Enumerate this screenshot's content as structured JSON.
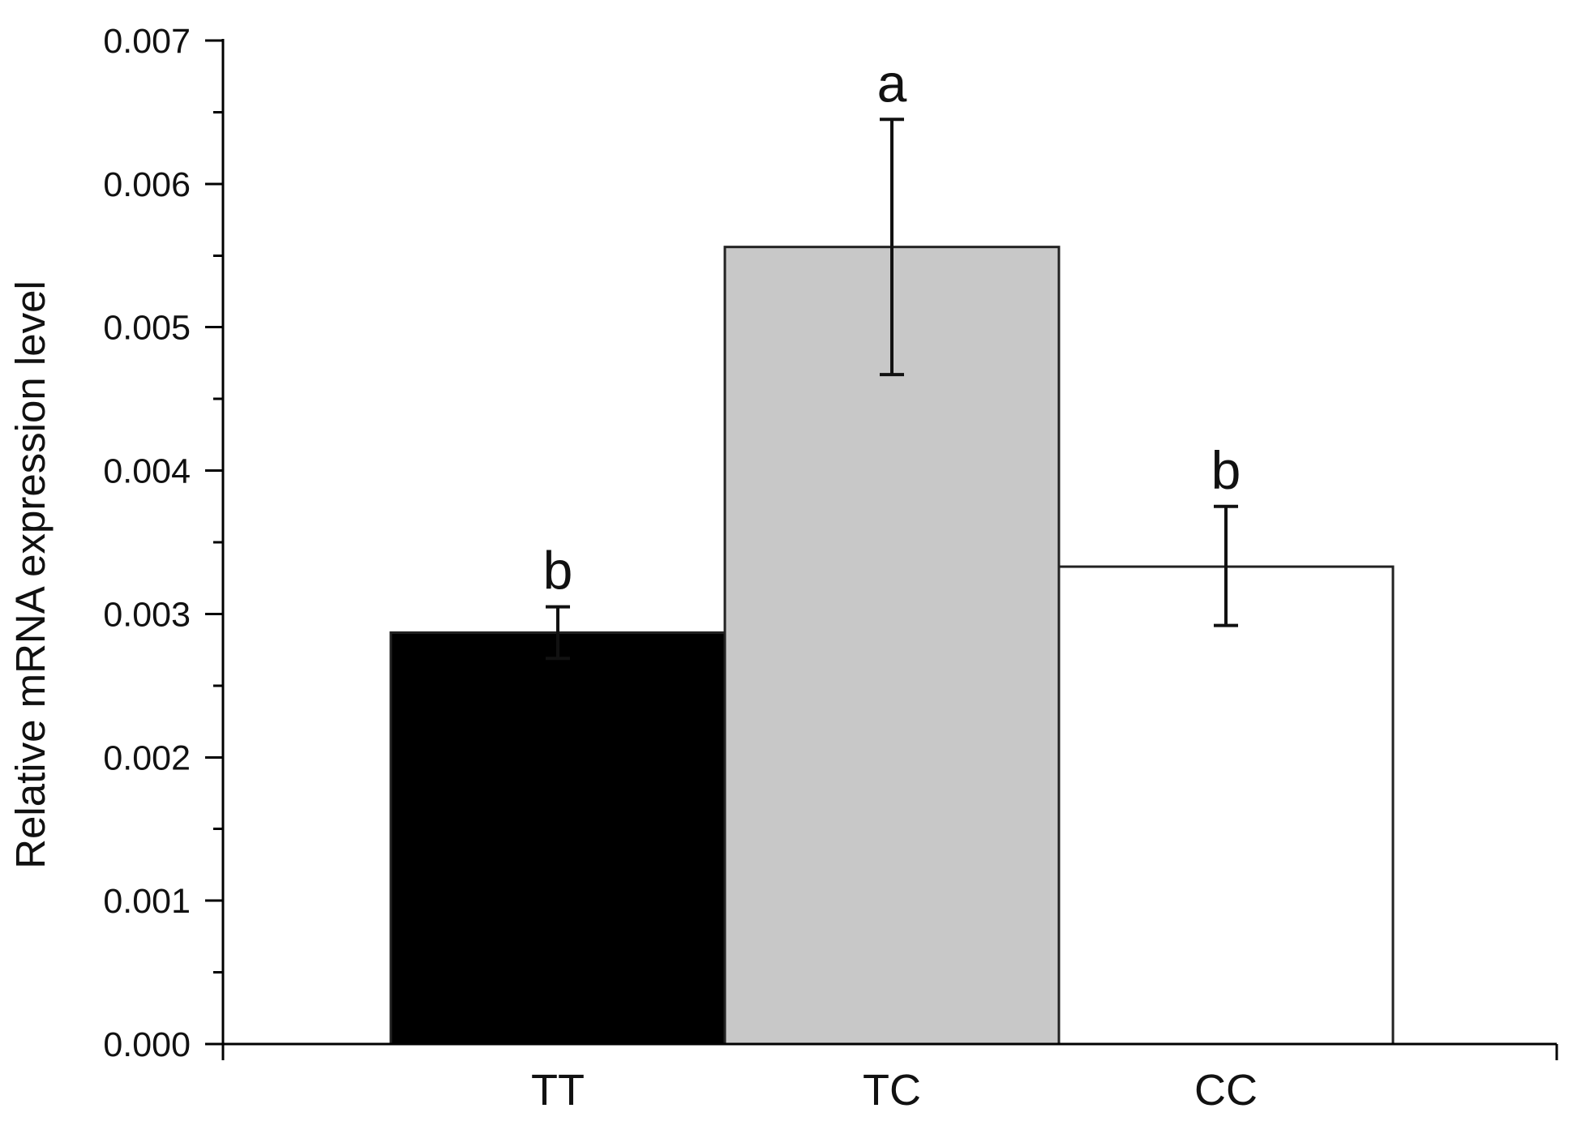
{
  "chart_data": {
    "type": "bar",
    "title": "",
    "xlabel": "",
    "ylabel": "Relative mRNA expression level",
    "categories": [
      "TT",
      "TC",
      "CC"
    ],
    "values": [
      0.00287,
      0.00556,
      0.00333
    ],
    "error_lower": [
      0.00269,
      0.00467,
      0.00292
    ],
    "error_upper": [
      0.00305,
      0.00645,
      0.00375
    ],
    "significance": [
      "b",
      "a",
      "b"
    ],
    "colors": [
      "#000000",
      "#c8c8c8",
      "#ffffff"
    ],
    "ylim": [
      0,
      0.007
    ],
    "yticks": [
      "0.000",
      "0.001",
      "0.002",
      "0.003",
      "0.004",
      "0.005",
      "0.006",
      "0.007"
    ],
    "grid": false,
    "legend": false
  }
}
